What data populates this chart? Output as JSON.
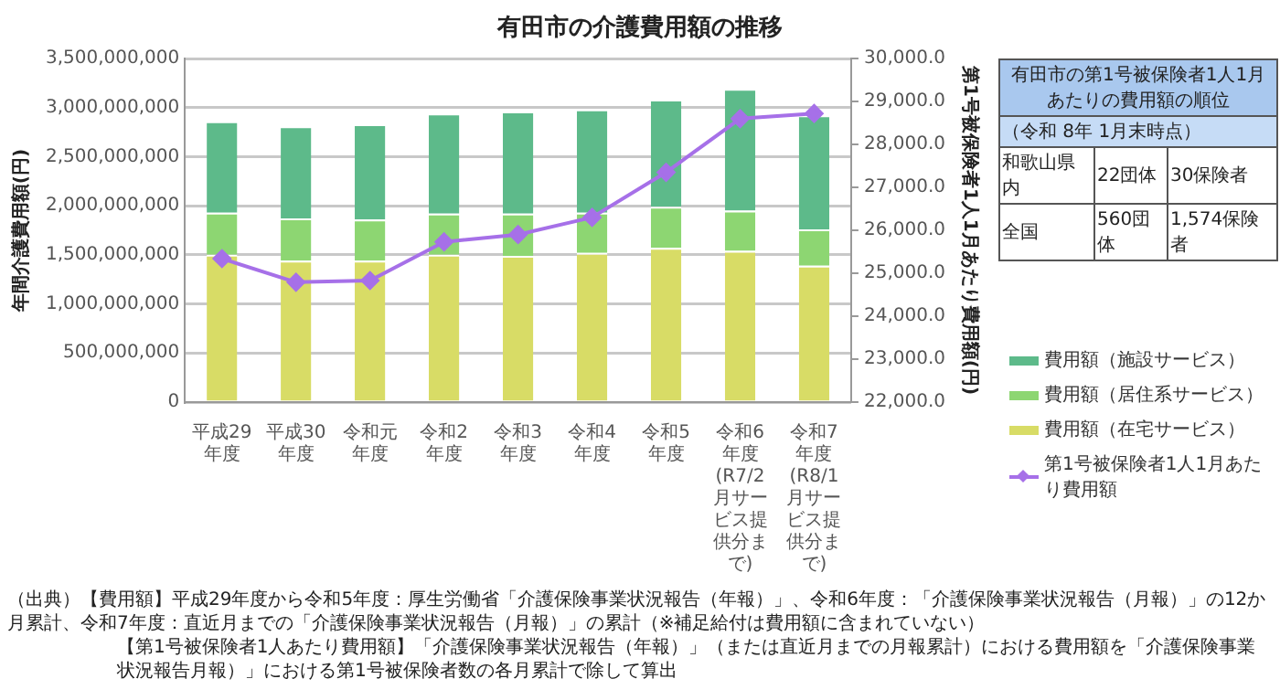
{
  "chart_data": {
    "type": "bar",
    "stacked": true,
    "title": "有田市の介護費用額の推移",
    "ylabel": "年間介護費用額(円)",
    "y2label": "第1号被保険者1人1月あたり費用額(円)",
    "categories": [
      "平成29年度",
      "平成30年度",
      "令和元年度",
      "令和2年度",
      "令和3年度",
      "令和4年度",
      "令和5年度",
      "令和6年度 (R7/2月サービス提供分まで)",
      "令和7年度 (R8/1月サービス提供分まで)"
    ],
    "series": [
      {
        "name": "費用額（在宅サービス）",
        "color": "#d8dc66",
        "values": [
          1500000000,
          1440000000,
          1440000000,
          1500000000,
          1490000000,
          1520000000,
          1570000000,
          1540000000,
          1390000000
        ]
      },
      {
        "name": "費用額（居住系サービス）",
        "color": "#8dd672",
        "values": [
          430000000,
          430000000,
          420000000,
          420000000,
          430000000,
          410000000,
          420000000,
          410000000,
          370000000
        ]
      },
      {
        "name": "費用額（施設サービス）",
        "color": "#5dba8a",
        "values": [
          930000000,
          940000000,
          970000000,
          1020000000,
          1040000000,
          1050000000,
          1090000000,
          1240000000,
          1160000000
        ]
      },
      {
        "name": "第1号被保険者1人1月あたり費用額",
        "type": "line",
        "axis": "y2",
        "color": "#a670e8",
        "values": [
          25340,
          24790,
          24830,
          25730,
          25900,
          26300,
          27350,
          28600,
          28720
        ]
      }
    ],
    "ylim": [
      0,
      3500000000
    ],
    "yticks": [
      0,
      {
        "value": 500000000,
        "label": "500,000,000"
      },
      {
        "value": 1000000000,
        "label": "1,000,000,000"
      },
      {
        "value": 1500000000,
        "label": "1,500,000,000"
      },
      {
        "value": 2000000000,
        "label": "2,000,000,000"
      },
      {
        "value": 2500000000,
        "label": "2,500,000,000"
      },
      {
        "value": 3000000000,
        "label": "3,000,000,000"
      },
      {
        "value": 3500000000,
        "label": "3,500,000,000"
      }
    ],
    "y2lim": [
      22000,
      30000
    ],
    "y2ticks": [
      {
        "value": 22000,
        "label": "22,000.0"
      },
      {
        "value": 23000,
        "label": "23,000.0"
      },
      {
        "value": 24000,
        "label": "24,000.0"
      },
      {
        "value": 25000,
        "label": "25,000.0"
      },
      {
        "value": 26000,
        "label": "26,000.0"
      },
      {
        "value": 27000,
        "label": "27,000.0"
      },
      {
        "value": 28000,
        "label": "28,000.0"
      },
      {
        "value": 29000,
        "label": "29,000.0"
      },
      {
        "value": 30000,
        "label": "30,000.0"
      }
    ],
    "grid": "y",
    "legend": "bottom right",
    "marker": "diamond",
    "annotations": [
      "有田市の第1号被保険者1人1月あたりの費用額の順位",
      "（令和 8年 1月末時点）",
      "和歌山県内",
      "22団体",
      "30保険者",
      "全国",
      "560団体",
      "1,574保険者",
      "（出典）【費用額】平成29年度から令和5年度：厚生労働省「介護保険事業状況報告（年報）」、令和6年度：「介護保険事業状況報告（月報）」の12か月累計、令和7年度：直近月までの「介護保険事業状況報告（月報）」の累計（※補足給付は費用額に含まれていない）",
      "【第1号被保険者1人あたり費用額】「介護保険事業状況報告（年報）」（または直近月までの月報累計）における費用額を「介護保険事業状況報告月報）」における第1号被保険者数の各月累計で除して算出"
    ]
  }
}
